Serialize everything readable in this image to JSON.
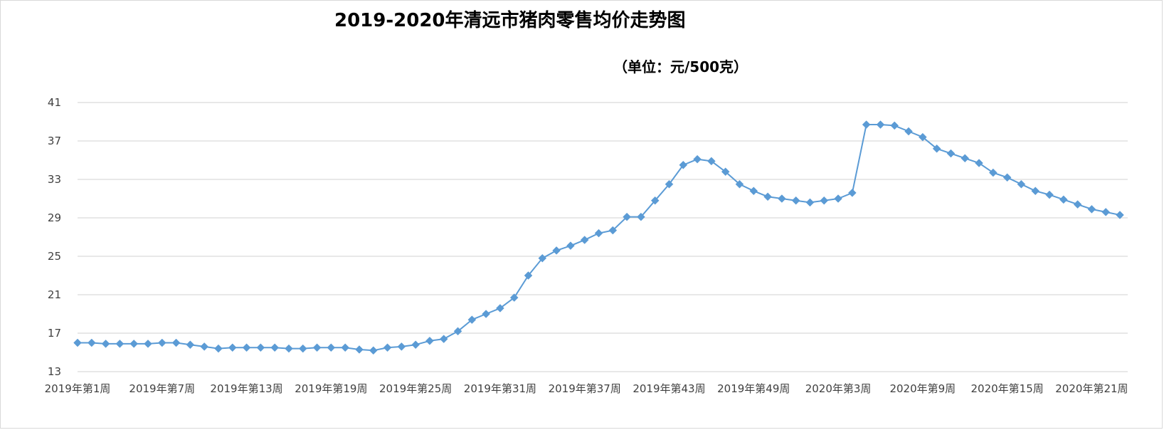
{
  "chart_data": {
    "type": "line",
    "title": "2019-2020年清远市猪肉零售均价走势图",
    "subtitle": "（单位：元/500克）",
    "xlabel": "",
    "ylabel": "",
    "ylim": [
      13,
      41
    ],
    "yticks": [
      13,
      17,
      21,
      25,
      29,
      33,
      37,
      41
    ],
    "grid": true,
    "marker": "diamond",
    "color": "#5B9BD5",
    "x_tick_labels": [
      {
        "index": 0,
        "label": "2019年第1周"
      },
      {
        "index": 6,
        "label": "2019年第7周"
      },
      {
        "index": 12,
        "label": "2019年第13周"
      },
      {
        "index": 18,
        "label": "2019年第19周"
      },
      {
        "index": 24,
        "label": "2019年第25周"
      },
      {
        "index": 30,
        "label": "2019年第31周"
      },
      {
        "index": 36,
        "label": "2019年第37周"
      },
      {
        "index": 42,
        "label": "2019年第43周"
      },
      {
        "index": 48,
        "label": "2019年第49周"
      },
      {
        "index": 54,
        "label": "2020年第3周"
      },
      {
        "index": 60,
        "label": "2020年第9周"
      },
      {
        "index": 66,
        "label": "2020年第15周"
      },
      {
        "index": 72,
        "label": "2020年第21周"
      }
    ],
    "series": [
      {
        "values": [
          16.0,
          16.0,
          15.9,
          15.9,
          15.9,
          15.9,
          16.0,
          16.0,
          15.8,
          15.6,
          15.4,
          15.5,
          15.5,
          15.5,
          15.5,
          15.4,
          15.4,
          15.5,
          15.5,
          15.5,
          15.3,
          15.2,
          15.5,
          15.6,
          15.8,
          16.2,
          16.4,
          17.2,
          18.4,
          19.0,
          19.6,
          20.7,
          23.0,
          24.8,
          25.6,
          26.1,
          26.7,
          27.4,
          27.7,
          29.1,
          29.1,
          30.8,
          32.5,
          34.5,
          35.1,
          34.9,
          33.8,
          32.5,
          31.8,
          31.2,
          31.0,
          30.8,
          30.6,
          30.8,
          31.0,
          31.6,
          38.7,
          38.7,
          38.6,
          38.0,
          37.4,
          36.2,
          35.7,
          35.2,
          34.7,
          33.7,
          33.2,
          32.5,
          31.8,
          31.4,
          30.9,
          30.4,
          29.9,
          29.6,
          29.3
        ]
      }
    ]
  }
}
